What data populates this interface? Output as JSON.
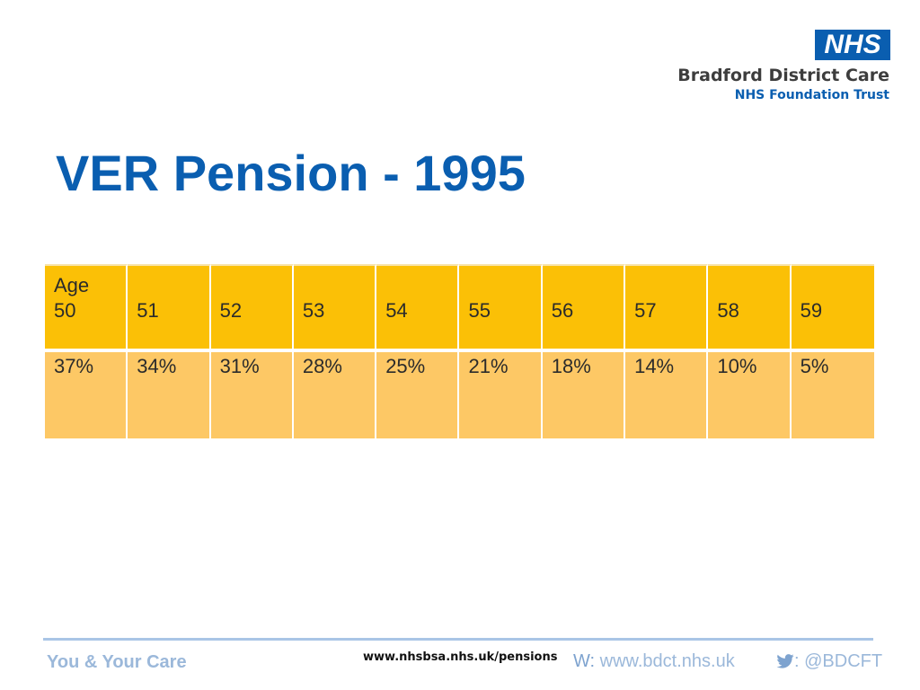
{
  "header": {
    "logo_text": "NHS",
    "org_name": "Bradford District Care",
    "org_sub": "NHS Foundation Trust"
  },
  "slide": {
    "title": "VER Pension - 1995"
  },
  "table": {
    "header": [
      "Age 50",
      "51",
      "52",
      "53",
      "54",
      "55",
      "56",
      "57",
      "58",
      "59"
    ],
    "header_first_line1": "Age",
    "header_first_line2": "50",
    "row": [
      "37%",
      "34%",
      "31%",
      "28%",
      "25%",
      "21%",
      "18%",
      "14%",
      "10%",
      "5%"
    ]
  },
  "footer": {
    "tagline": "You & Your Care",
    "url": "www.nhsbsa.nhs.uk/pensions",
    "web_label": "W:",
    "web_url": "www.bdct.nhs.uk",
    "twitter_sep": ":",
    "twitter_handle": "@BDCFT"
  },
  "colors": {
    "brand_blue": "#0a5eb0",
    "header_row": "#fbc006",
    "body_row": "#fdc865",
    "footer_text": "#9bb8da"
  }
}
